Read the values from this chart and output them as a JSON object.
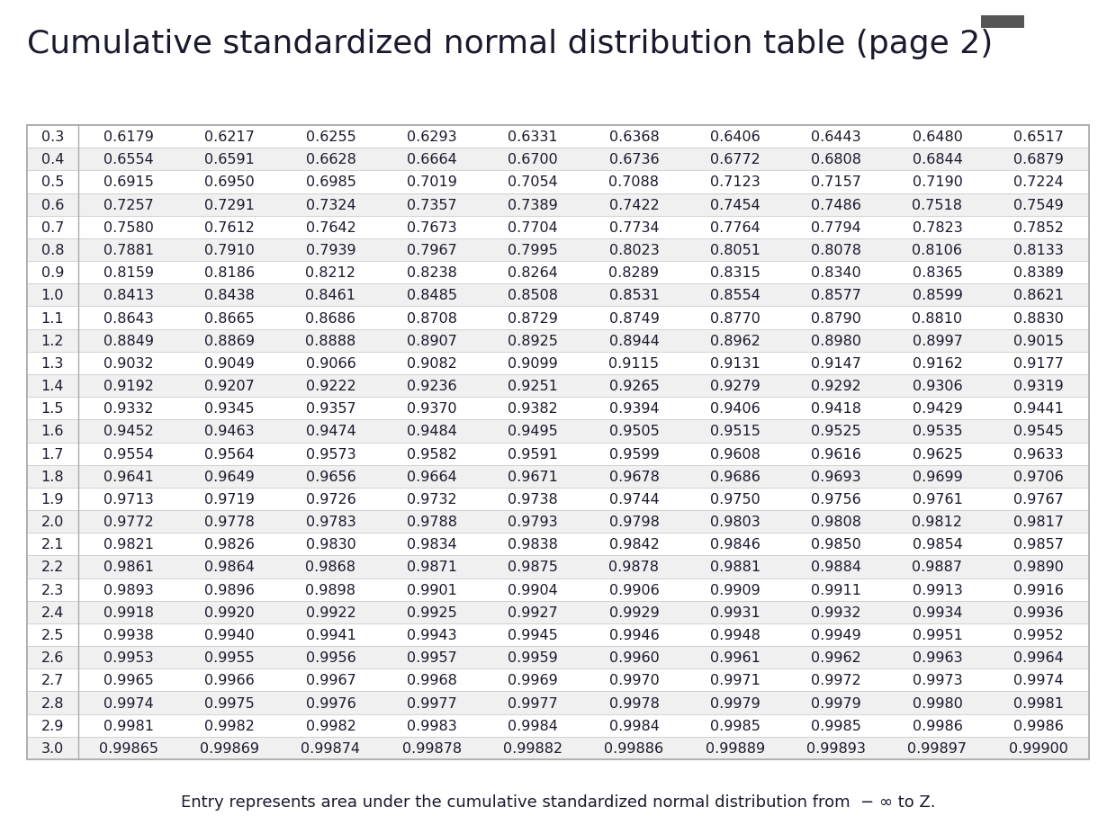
{
  "title": "Cumulative standardized normal distribution table (page 2)",
  "footer": "Entry represents area under the cumulative standardized normal distribution from  − ∞ to Z.",
  "rows": [
    [
      "0.3",
      "0.6179",
      "0.6217",
      "0.6255",
      "0.6293",
      "0.6331",
      "0.6368",
      "0.6406",
      "0.6443",
      "0.6480",
      "0.6517"
    ],
    [
      "0.4",
      "0.6554",
      "0.6591",
      "0.6628",
      "0.6664",
      "0.6700",
      "0.6736",
      "0.6772",
      "0.6808",
      "0.6844",
      "0.6879"
    ],
    [
      "0.5",
      "0.6915",
      "0.6950",
      "0.6985",
      "0.7019",
      "0.7054",
      "0.7088",
      "0.7123",
      "0.7157",
      "0.7190",
      "0.7224"
    ],
    [
      "0.6",
      "0.7257",
      "0.7291",
      "0.7324",
      "0.7357",
      "0.7389",
      "0.7422",
      "0.7454",
      "0.7486",
      "0.7518",
      "0.7549"
    ],
    [
      "0.7",
      "0.7580",
      "0.7612",
      "0.7642",
      "0.7673",
      "0.7704",
      "0.7734",
      "0.7764",
      "0.7794",
      "0.7823",
      "0.7852"
    ],
    [
      "0.8",
      "0.7881",
      "0.7910",
      "0.7939",
      "0.7967",
      "0.7995",
      "0.8023",
      "0.8051",
      "0.8078",
      "0.8106",
      "0.8133"
    ],
    [
      "0.9",
      "0.8159",
      "0.8186",
      "0.8212",
      "0.8238",
      "0.8264",
      "0.8289",
      "0.8315",
      "0.8340",
      "0.8365",
      "0.8389"
    ],
    [
      "1.0",
      "0.8413",
      "0.8438",
      "0.8461",
      "0.8485",
      "0.8508",
      "0.8531",
      "0.8554",
      "0.8577",
      "0.8599",
      "0.8621"
    ],
    [
      "1.1",
      "0.8643",
      "0.8665",
      "0.8686",
      "0.8708",
      "0.8729",
      "0.8749",
      "0.8770",
      "0.8790",
      "0.8810",
      "0.8830"
    ],
    [
      "1.2",
      "0.8849",
      "0.8869",
      "0.8888",
      "0.8907",
      "0.8925",
      "0.8944",
      "0.8962",
      "0.8980",
      "0.8997",
      "0.9015"
    ],
    [
      "1.3",
      "0.9032",
      "0.9049",
      "0.9066",
      "0.9082",
      "0.9099",
      "0.9115",
      "0.9131",
      "0.9147",
      "0.9162",
      "0.9177"
    ],
    [
      "1.4",
      "0.9192",
      "0.9207",
      "0.9222",
      "0.9236",
      "0.9251",
      "0.9265",
      "0.9279",
      "0.9292",
      "0.9306",
      "0.9319"
    ],
    [
      "1.5",
      "0.9332",
      "0.9345",
      "0.9357",
      "0.9370",
      "0.9382",
      "0.9394",
      "0.9406",
      "0.9418",
      "0.9429",
      "0.9441"
    ],
    [
      "1.6",
      "0.9452",
      "0.9463",
      "0.9474",
      "0.9484",
      "0.9495",
      "0.9505",
      "0.9515",
      "0.9525",
      "0.9535",
      "0.9545"
    ],
    [
      "1.7",
      "0.9554",
      "0.9564",
      "0.9573",
      "0.9582",
      "0.9591",
      "0.9599",
      "0.9608",
      "0.9616",
      "0.9625",
      "0.9633"
    ],
    [
      "1.8",
      "0.9641",
      "0.9649",
      "0.9656",
      "0.9664",
      "0.9671",
      "0.9678",
      "0.9686",
      "0.9693",
      "0.9699",
      "0.9706"
    ],
    [
      "1.9",
      "0.9713",
      "0.9719",
      "0.9726",
      "0.9732",
      "0.9738",
      "0.9744",
      "0.9750",
      "0.9756",
      "0.9761",
      "0.9767"
    ],
    [
      "2.0",
      "0.9772",
      "0.9778",
      "0.9783",
      "0.9788",
      "0.9793",
      "0.9798",
      "0.9803",
      "0.9808",
      "0.9812",
      "0.9817"
    ],
    [
      "2.1",
      "0.9821",
      "0.9826",
      "0.9830",
      "0.9834",
      "0.9838",
      "0.9842",
      "0.9846",
      "0.9850",
      "0.9854",
      "0.9857"
    ],
    [
      "2.2",
      "0.9861",
      "0.9864",
      "0.9868",
      "0.9871",
      "0.9875",
      "0.9878",
      "0.9881",
      "0.9884",
      "0.9887",
      "0.9890"
    ],
    [
      "2.3",
      "0.9893",
      "0.9896",
      "0.9898",
      "0.9901",
      "0.9904",
      "0.9906",
      "0.9909",
      "0.9911",
      "0.9913",
      "0.9916"
    ],
    [
      "2.4",
      "0.9918",
      "0.9920",
      "0.9922",
      "0.9925",
      "0.9927",
      "0.9929",
      "0.9931",
      "0.9932",
      "0.9934",
      "0.9936"
    ],
    [
      "2.5",
      "0.9938",
      "0.9940",
      "0.9941",
      "0.9943",
      "0.9945",
      "0.9946",
      "0.9948",
      "0.9949",
      "0.9951",
      "0.9952"
    ],
    [
      "2.6",
      "0.9953",
      "0.9955",
      "0.9956",
      "0.9957",
      "0.9959",
      "0.9960",
      "0.9961",
      "0.9962",
      "0.9963",
      "0.9964"
    ],
    [
      "2.7",
      "0.9965",
      "0.9966",
      "0.9967",
      "0.9968",
      "0.9969",
      "0.9970",
      "0.9971",
      "0.9972",
      "0.9973",
      "0.9974"
    ],
    [
      "2.8",
      "0.9974",
      "0.9975",
      "0.9976",
      "0.9977",
      "0.9977",
      "0.9978",
      "0.9979",
      "0.9979",
      "0.9980",
      "0.9981"
    ],
    [
      "2.9",
      "0.9981",
      "0.9982",
      "0.9982",
      "0.9983",
      "0.9984",
      "0.9984",
      "0.9985",
      "0.9985",
      "0.9986",
      "0.9986"
    ],
    [
      "3.0",
      "0.99865",
      "0.99869",
      "0.99874",
      "0.99878",
      "0.99882",
      "0.99886",
      "0.99889",
      "0.99893",
      "0.99897",
      "0.99900"
    ]
  ],
  "background_color": "#ffffff",
  "table_border_color": "#aaaaaa",
  "row_separator_color": "#cccccc",
  "text_color": "#1a1a2e",
  "footer_color": "#1a1a2e",
  "title_fontsize": 26,
  "table_fontsize": 11.5,
  "footer_fontsize": 13,
  "minibar_color": "#555555",
  "odd_row_bg": "#f0f0f0",
  "even_row_bg": "#ffffff"
}
